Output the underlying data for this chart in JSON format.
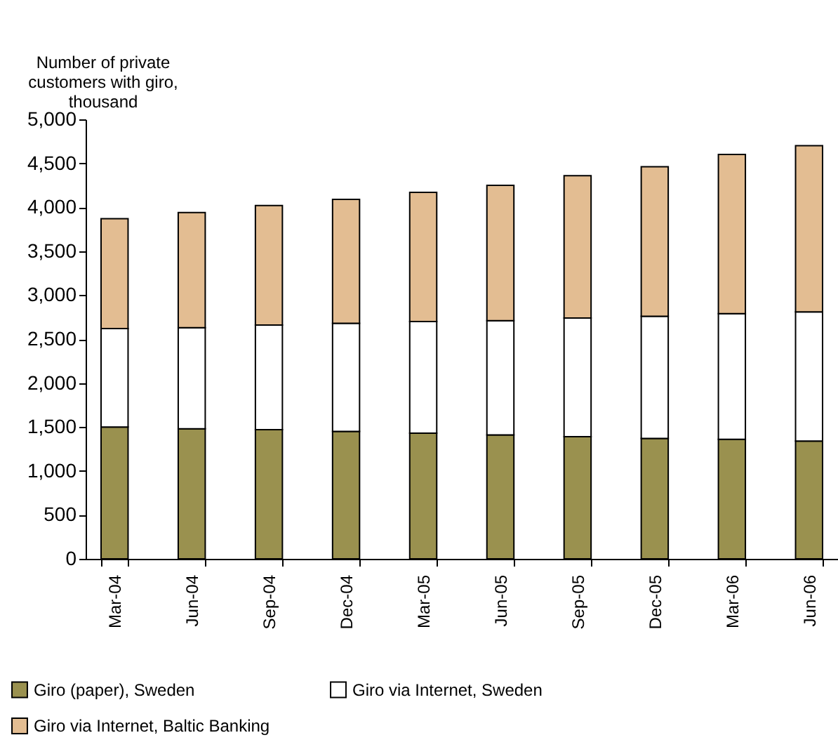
{
  "chart_data": {
    "type": "bar",
    "stacked": true,
    "ylabel": "Number of private customers with giro, thousand",
    "categories": [
      "Mar-04",
      "Jun-04",
      "Sep-04",
      "Dec-04",
      "Mar-05",
      "Jun-05",
      "Sep-05",
      "Dec-05",
      "Mar-06",
      "Jun-06"
    ],
    "series": [
      {
        "name": "Giro (paper), Sweden",
        "color": "#9a914f",
        "values": [
          1500,
          1480,
          1470,
          1450,
          1430,
          1410,
          1390,
          1370,
          1360,
          1340
        ]
      },
      {
        "name": "Giro via Internet, Sweden",
        "color": "#ffffff",
        "values": [
          1120,
          1150,
          1190,
          1230,
          1270,
          1300,
          1350,
          1390,
          1430,
          1470
        ]
      },
      {
        "name": "Giro via Internet, Baltic Banking",
        "color": "#e3bd92",
        "values": [
          1250,
          1310,
          1360,
          1410,
          1470,
          1540,
          1620,
          1700,
          1810,
          1890
        ]
      }
    ],
    "ylim": [
      0,
      5000
    ],
    "yticks": [
      0,
      500,
      {
        "value": 1000,
        "label": "1,000"
      },
      {
        "value": 1500,
        "label": "1,500"
      },
      {
        "value": 2000,
        "label": "2,000"
      },
      {
        "value": 2500,
        "label": "2,500"
      },
      {
        "value": 3000,
        "label": "3,000"
      },
      {
        "value": 3500,
        "label": "3,500"
      },
      {
        "value": 4000,
        "label": "4,000"
      },
      {
        "value": 4500,
        "label": "4,500"
      },
      {
        "value": 5000,
        "label": "5,000"
      }
    ],
    "legend": "bottom",
    "grid": false
  }
}
